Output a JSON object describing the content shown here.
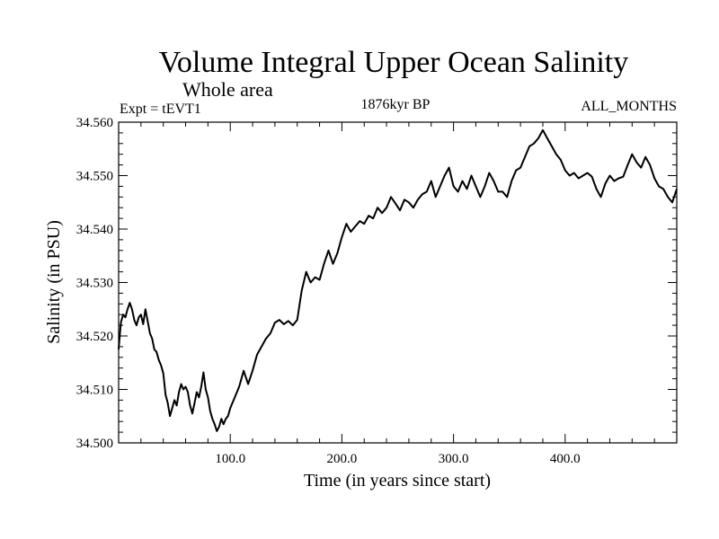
{
  "chart_data": {
    "type": "line",
    "title": "Volume Integral Upper Ocean Salinity",
    "subtitle": "Whole area",
    "header_left": "Expt = tEVT1",
    "header_center": "1876kyr BP",
    "header_right": "ALL_MONTHS",
    "xlabel": "Time (in years since start)",
    "ylabel": "Salinity (in PSU)",
    "xlim": [
      0,
      500
    ],
    "ylim": [
      34.5,
      34.56
    ],
    "x_ticks": [
      100,
      200,
      300,
      400
    ],
    "x_tick_labels": [
      "100.0",
      "200.0",
      "300.0",
      "400.0"
    ],
    "y_ticks": [
      34.5,
      34.51,
      34.52,
      34.53,
      34.54,
      34.55,
      34.56
    ],
    "y_tick_labels": [
      "34.500",
      "34.510",
      "34.520",
      "34.530",
      "34.540",
      "34.550",
      "34.560"
    ],
    "line_color": "#000000",
    "series": [
      {
        "name": "salinity",
        "x": [
          0,
          2,
          4,
          6,
          8,
          10,
          12,
          14,
          16,
          18,
          20,
          22,
          24,
          26,
          28,
          30,
          32,
          34,
          36,
          38,
          40,
          42,
          44,
          46,
          48,
          50,
          52,
          54,
          56,
          58,
          60,
          62,
          64,
          66,
          68,
          70,
          72,
          74,
          76,
          78,
          80,
          82,
          84,
          86,
          88,
          90,
          92,
          94,
          96,
          98,
          100,
          104,
          108,
          112,
          116,
          120,
          124,
          128,
          132,
          136,
          140,
          144,
          148,
          152,
          156,
          160,
          164,
          168,
          172,
          176,
          180,
          184,
          188,
          192,
          196,
          200,
          204,
          208,
          212,
          216,
          220,
          224,
          228,
          232,
          236,
          240,
          244,
          248,
          252,
          256,
          260,
          264,
          268,
          272,
          276,
          280,
          284,
          288,
          292,
          296,
          300,
          304,
          308,
          312,
          316,
          320,
          324,
          328,
          332,
          336,
          340,
          344,
          348,
          352,
          356,
          360,
          364,
          368,
          372,
          376,
          380,
          384,
          388,
          392,
          396,
          400,
          404,
          408,
          412,
          416,
          420,
          424,
          428,
          432,
          436,
          440,
          444,
          448,
          452,
          456,
          460,
          464,
          468,
          472,
          476,
          480,
          484,
          488,
          492,
          496,
          500
        ],
        "values": [
          34.5175,
          34.5225,
          34.524,
          34.5235,
          34.525,
          34.5262,
          34.525,
          34.523,
          34.522,
          34.5235,
          34.524,
          34.5222,
          34.525,
          34.5228,
          34.5205,
          34.5195,
          34.5175,
          34.517,
          34.5155,
          34.5145,
          34.513,
          34.509,
          34.5075,
          34.505,
          34.5065,
          34.508,
          34.507,
          34.5095,
          34.511,
          34.51,
          34.5105,
          34.5095,
          34.507,
          34.5055,
          34.5075,
          34.5095,
          34.5085,
          34.5105,
          34.5132,
          34.51,
          34.5085,
          34.506,
          34.5045,
          34.5035,
          34.5022,
          34.503,
          34.5045,
          34.5035,
          34.5045,
          34.505,
          34.5065,
          34.5085,
          34.5105,
          34.5135,
          34.511,
          34.5135,
          34.5165,
          34.518,
          34.5195,
          34.5205,
          34.5225,
          34.523,
          34.5222,
          34.5228,
          34.522,
          34.523,
          34.5285,
          34.532,
          34.53,
          34.531,
          34.5305,
          34.5335,
          34.536,
          34.5335,
          34.5355,
          34.5385,
          34.541,
          34.5395,
          34.5405,
          34.5415,
          34.541,
          34.5425,
          34.542,
          34.544,
          34.543,
          34.544,
          34.546,
          34.5448,
          34.5435,
          34.5455,
          34.545,
          34.544,
          34.5455,
          34.5465,
          34.547,
          34.549,
          34.546,
          34.548,
          34.55,
          34.5515,
          34.548,
          34.547,
          34.549,
          34.5475,
          34.55,
          34.548,
          34.546,
          34.548,
          34.5505,
          34.549,
          34.547,
          34.547,
          34.546,
          34.549,
          34.551,
          34.5515,
          34.5535,
          34.5555,
          34.556,
          34.557,
          34.5585,
          34.557,
          34.5555,
          34.554,
          34.553,
          34.551,
          34.55,
          34.5505,
          34.5495,
          34.55,
          34.5505,
          34.5498,
          34.5475,
          34.546,
          34.5485,
          34.55,
          34.549,
          34.5495,
          34.5498,
          34.552,
          34.554,
          34.5525,
          34.5515,
          34.5535,
          34.552,
          34.5495,
          34.548,
          34.5475,
          34.546,
          34.545,
          34.5475
        ]
      }
    ]
  }
}
